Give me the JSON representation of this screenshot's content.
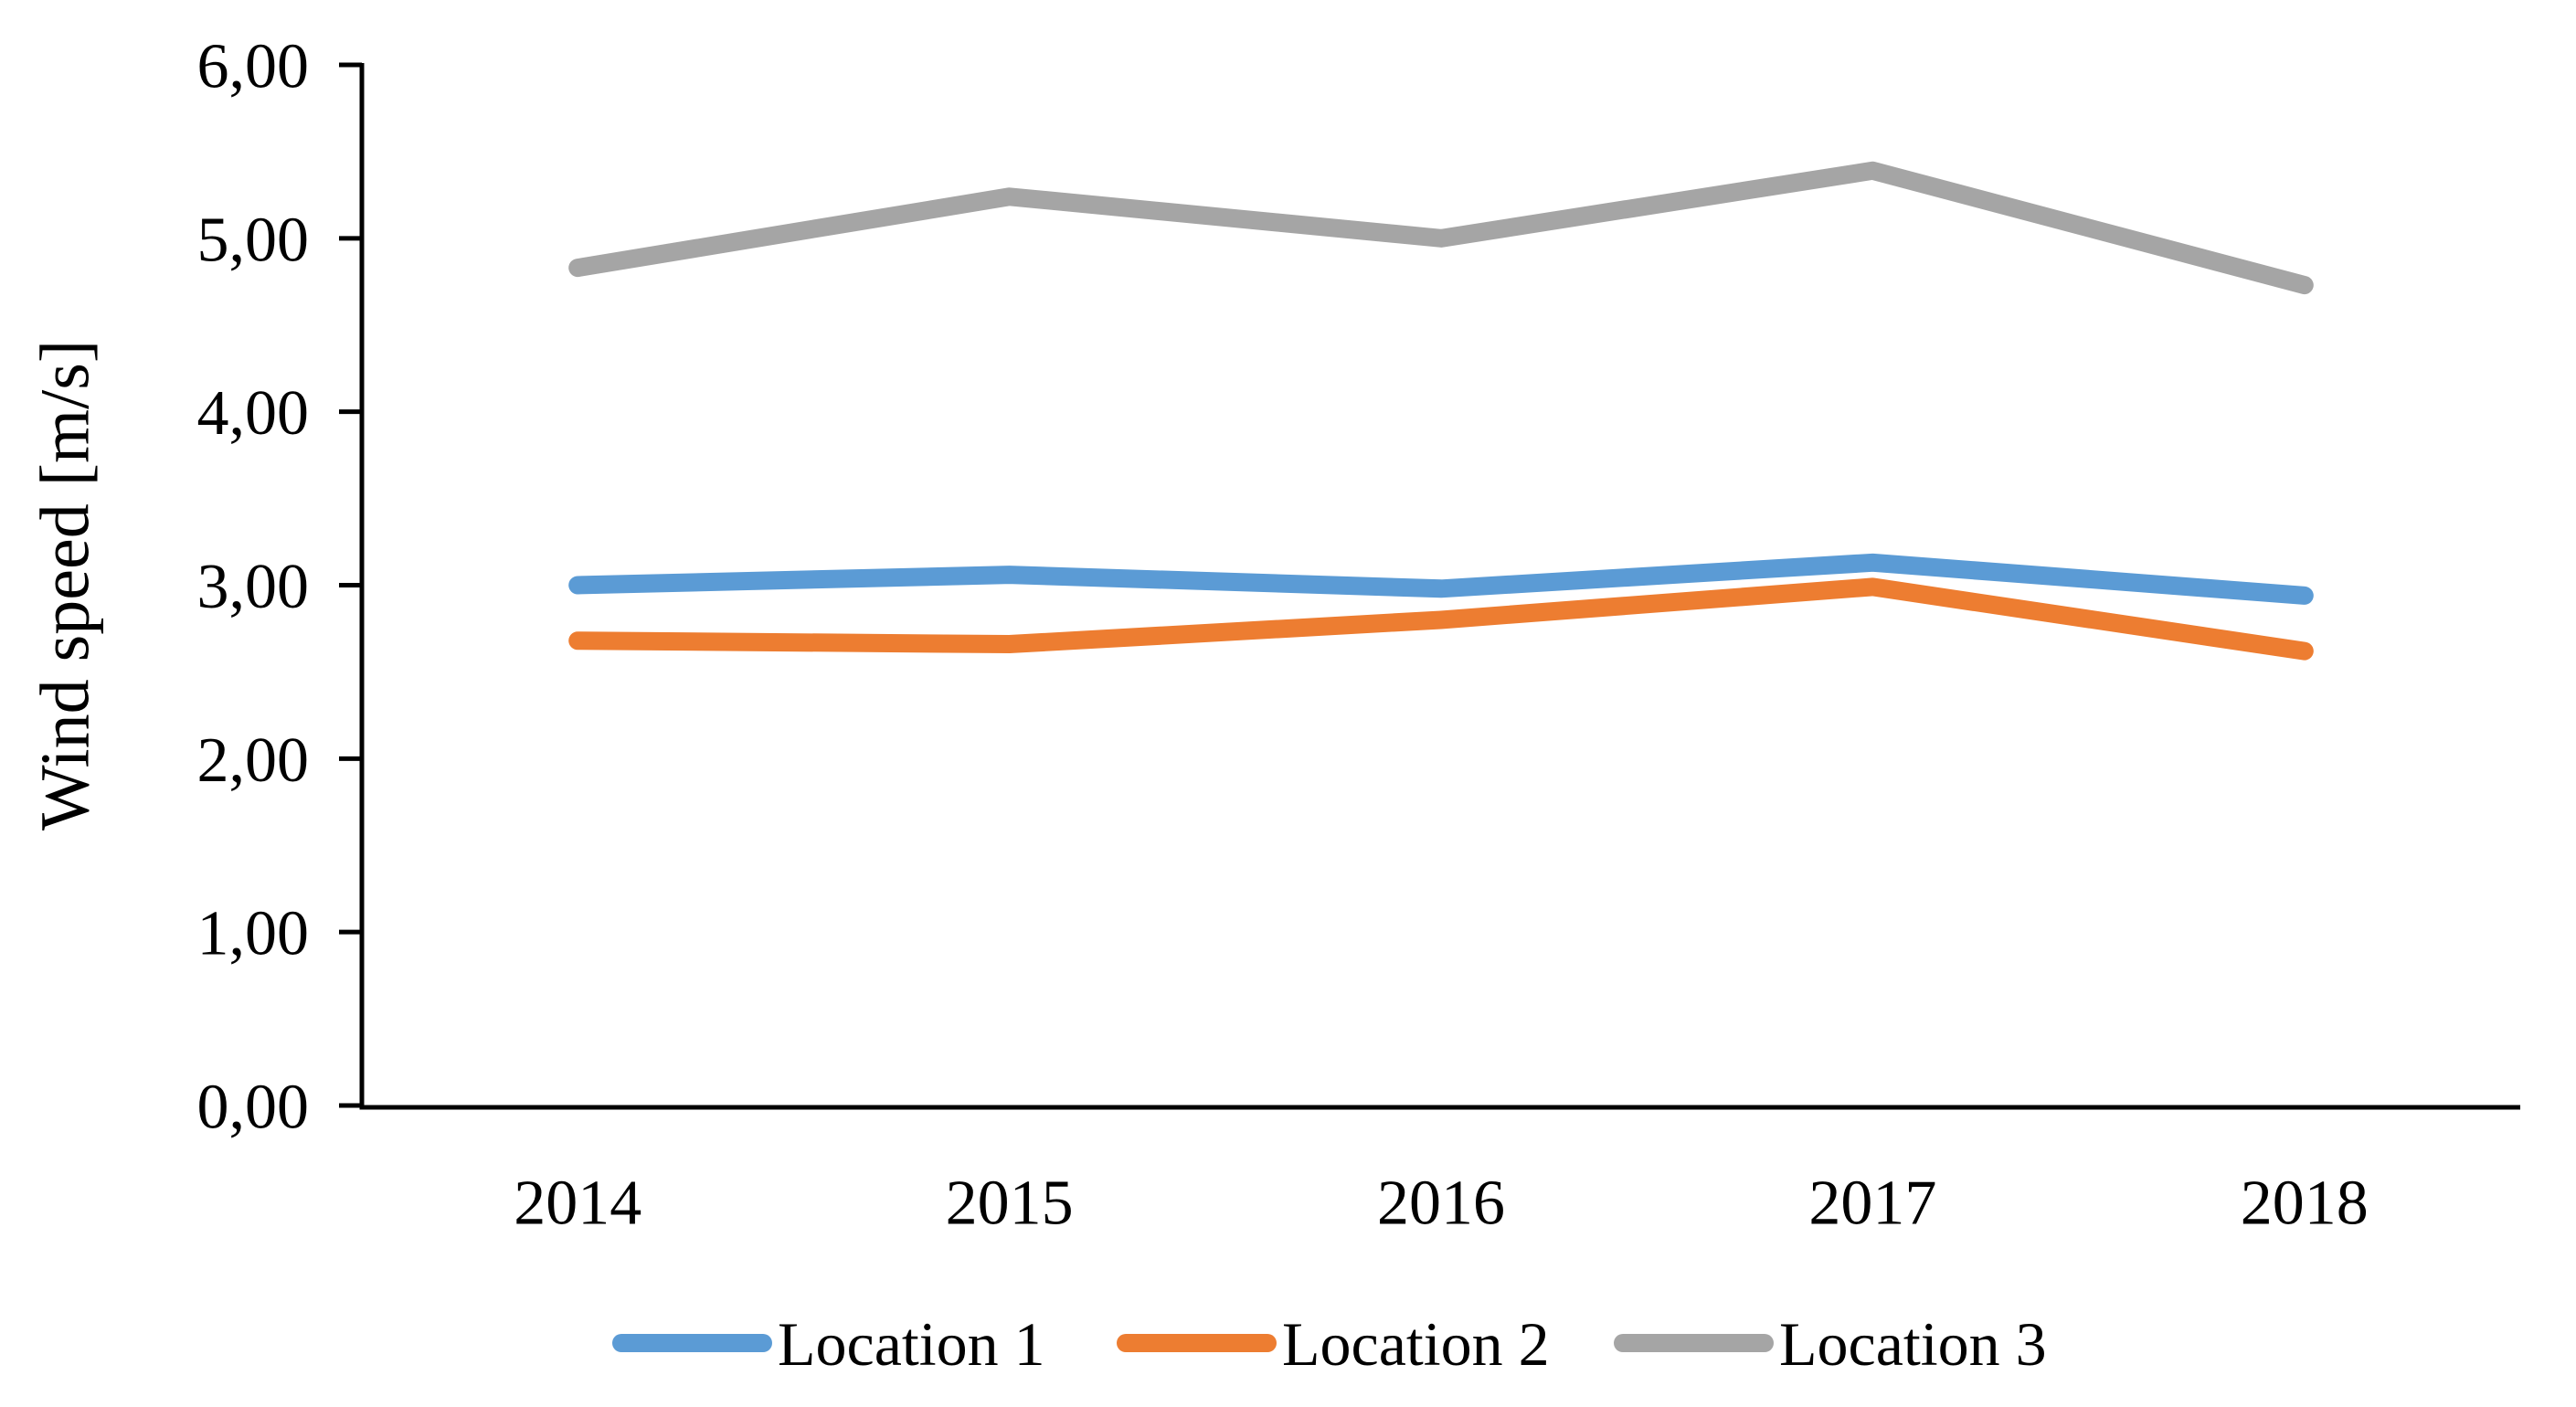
{
  "figure": {
    "title": "",
    "background": "#ffffff",
    "text_color": "#000000",
    "axis_color": "#000000"
  },
  "chart_data": {
    "type": "line",
    "title": "",
    "xlabel": "",
    "ylabel": "Wind speed [m/s]",
    "categories": [
      "2014",
      "2015",
      "2016",
      "2017",
      "2018"
    ],
    "series": [
      {
        "name": "Location 1",
        "color": "#5B9BD5",
        "values": [
          3.0,
          3.06,
          2.98,
          3.13,
          2.94
        ]
      },
      {
        "name": "Location 2",
        "color": "#ED7D31",
        "values": [
          2.68,
          2.66,
          2.8,
          2.99,
          2.62
        ]
      },
      {
        "name": "Location 3",
        "color": "#A5A5A5",
        "values": [
          4.83,
          5.24,
          5.0,
          5.39,
          4.73
        ]
      }
    ],
    "ylim": [
      0,
      6
    ],
    "ytick_step": 1,
    "ytick_labels": [
      "0,00",
      "1,00",
      "2,00",
      "3,00",
      "4,00",
      "5,00",
      "6,00"
    ],
    "decimal_separator": ",",
    "grid": false,
    "legend_position": "bottom",
    "legend_entries": [
      "Location 1",
      "Location 2",
      "Location 3"
    ]
  }
}
